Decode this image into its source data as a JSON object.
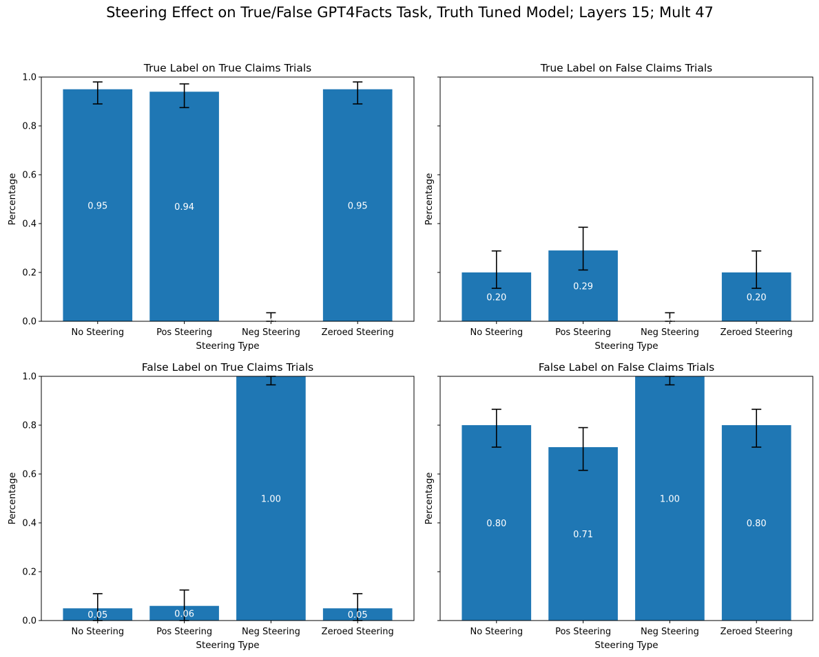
{
  "figure": {
    "title": "Steering Effect on True/False GPT4Facts Task, Truth Tuned Model; Layers 15; Mult 47"
  },
  "style": {
    "bar_color": "#1f77b4",
    "error_color": "#000000",
    "label_color": "#ffffff"
  },
  "chart_data": [
    {
      "type": "bar",
      "title": "True Label on True Claims Trials",
      "xlabel": "Steering Type",
      "ylabel": "Percentage",
      "categories": [
        "No Steering",
        "Pos Steering",
        "Neg Steering",
        "Zeroed Steering"
      ],
      "values": [
        0.95,
        0.94,
        0.0,
        0.95
      ],
      "value_labels": [
        "0.95",
        "0.94",
        "0.00",
        "0.95"
      ],
      "error_low": [
        0.89,
        0.875,
        0.0,
        0.89
      ],
      "error_high": [
        0.98,
        0.972,
        0.035,
        0.98
      ],
      "ylim": [
        0,
        1
      ],
      "yticks": [
        "0.0",
        "0.2",
        "0.4",
        "0.6",
        "0.8",
        "1.0"
      ],
      "show_ytick_labels": true
    },
    {
      "type": "bar",
      "title": "True Label on False Claims Trials",
      "xlabel": "Steering Type",
      "ylabel": "Percentage",
      "categories": [
        "No Steering",
        "Pos Steering",
        "Neg Steering",
        "Zeroed Steering"
      ],
      "values": [
        0.2,
        0.29,
        0.0,
        0.2
      ],
      "value_labels": [
        "0.20",
        "0.29",
        "0.00",
        "0.20"
      ],
      "error_low": [
        0.135,
        0.21,
        0.0,
        0.135
      ],
      "error_high": [
        0.288,
        0.385,
        0.035,
        0.288
      ],
      "ylim": [
        0,
        1
      ],
      "yticks": [
        "0.0",
        "0.2",
        "0.4",
        "0.6",
        "0.8",
        "1.0"
      ],
      "show_ytick_labels": false
    },
    {
      "type": "bar",
      "title": "False Label on True Claims Trials",
      "xlabel": "Steering Type",
      "ylabel": "Percentage",
      "categories": [
        "No Steering",
        "Pos Steering",
        "Neg Steering",
        "Zeroed Steering"
      ],
      "values": [
        0.05,
        0.06,
        1.0,
        0.05
      ],
      "value_labels": [
        "0.05",
        "0.06",
        "1.00",
        "0.05"
      ],
      "error_low": [
        0.0,
        0.0,
        0.965,
        0.0
      ],
      "error_high": [
        0.11,
        0.125,
        1.0,
        0.11
      ],
      "ylim": [
        0,
        1
      ],
      "yticks": [
        "0.0",
        "0.2",
        "0.4",
        "0.6",
        "0.8",
        "1.0"
      ],
      "show_ytick_labels": true
    },
    {
      "type": "bar",
      "title": "False Label on False Claims Trials",
      "xlabel": "Steering Type",
      "ylabel": "Percentage",
      "categories": [
        "No Steering",
        "Pos Steering",
        "Neg Steering",
        "Zeroed Steering"
      ],
      "values": [
        0.8,
        0.71,
        1.0,
        0.8
      ],
      "value_labels": [
        "0.80",
        "0.71",
        "1.00",
        "0.80"
      ],
      "error_low": [
        0.71,
        0.615,
        0.965,
        0.71
      ],
      "error_high": [
        0.865,
        0.79,
        1.0,
        0.865
      ],
      "ylim": [
        0,
        1
      ],
      "yticks": [
        "0.0",
        "0.2",
        "0.4",
        "0.6",
        "0.8",
        "1.0"
      ],
      "show_ytick_labels": false
    }
  ]
}
